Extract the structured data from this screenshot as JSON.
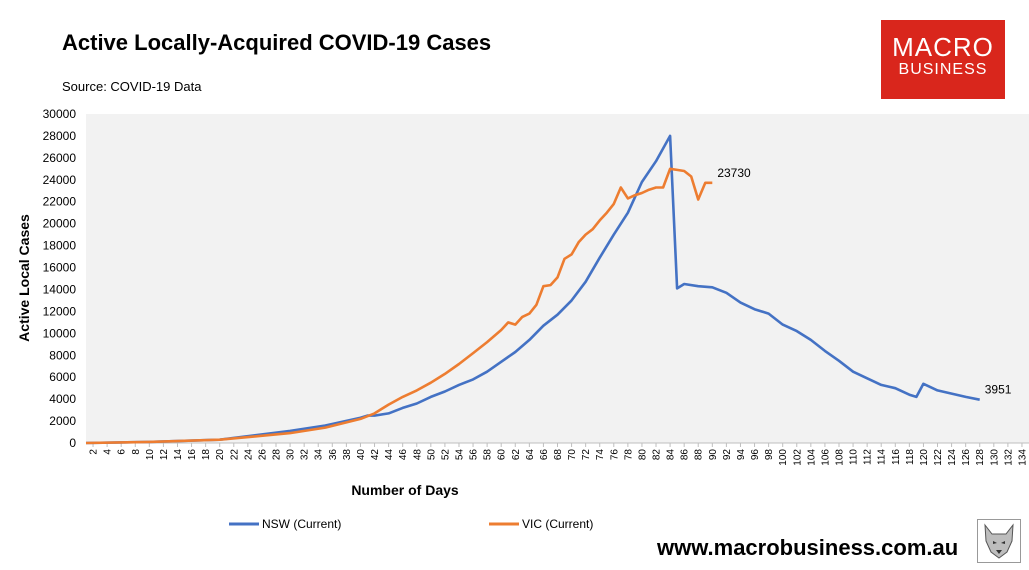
{
  "header": {
    "title": "Active Locally-Acquired COVID-19 Cases",
    "source": "Source: COVID-19 Data"
  },
  "brand": {
    "logo_line1": "MACRO",
    "logo_line2": "BUSINESS",
    "url": "www.macrobusiness.com.au",
    "accent_color": "#d9261c"
  },
  "chart_data": {
    "type": "line",
    "title": "Active Locally-Acquired COVID-19 Cases",
    "xlabel": "Number of Days",
    "ylabel": "Active Local Cases",
    "xlim": [
      1,
      135
    ],
    "ylim": [
      0,
      30000
    ],
    "y_ticks": [
      0,
      2000,
      4000,
      6000,
      8000,
      10000,
      12000,
      14000,
      16000,
      18000,
      20000,
      22000,
      24000,
      26000,
      28000,
      30000
    ],
    "y_tick_labels": [
      "0",
      "2000",
      "4000",
      "6000",
      "8000",
      "10000",
      "12000",
      "14000",
      "16000",
      "18000",
      "20000",
      "22000",
      "24000",
      "26000",
      "28000",
      "30000"
    ],
    "x_ticks": [
      2,
      4,
      6,
      8,
      10,
      12,
      14,
      16,
      18,
      20,
      22,
      24,
      26,
      28,
      30,
      32,
      34,
      36,
      38,
      40,
      42,
      44,
      46,
      48,
      50,
      52,
      54,
      56,
      58,
      60,
      62,
      64,
      66,
      68,
      70,
      72,
      74,
      76,
      78,
      80,
      82,
      84,
      86,
      88,
      90,
      92,
      94,
      96,
      98,
      100,
      102,
      104,
      106,
      108,
      110,
      112,
      114,
      116,
      118,
      120,
      122,
      124,
      126,
      128,
      130,
      132,
      134
    ],
    "x_tick_labels": [
      "2",
      "4",
      "6",
      "8",
      "10",
      "12",
      "14",
      "16",
      "18",
      "20",
      "22",
      "24",
      "26",
      "28",
      "30",
      "32",
      "34",
      "36",
      "38",
      "40",
      "42",
      "44",
      "46",
      "48",
      "50",
      "52",
      "54",
      "56",
      "58",
      "60",
      "62",
      "64",
      "66",
      "68",
      "70",
      "72",
      "74",
      "76",
      "78",
      "80",
      "82",
      "84",
      "86",
      "88",
      "90",
      "92",
      "94",
      "96",
      "98",
      "100",
      "102",
      "104",
      "106",
      "108",
      "110",
      "112",
      "114",
      "116",
      "118",
      "120",
      "122",
      "124",
      "126",
      "128",
      "130",
      "132",
      "134"
    ],
    "grid": false,
    "legend": "bottom",
    "series": [
      {
        "name": "NSW (Current)",
        "color": "#4472c4",
        "x": [
          1,
          10,
          20,
          25,
          30,
          35,
          40,
          41,
          42,
          44,
          46,
          48,
          50,
          52,
          54,
          56,
          58,
          60,
          62,
          64,
          66,
          68,
          70,
          72,
          74,
          76,
          78,
          80,
          82,
          84,
          85,
          86,
          88,
          90,
          92,
          94,
          96,
          98,
          100,
          102,
          104,
          106,
          108,
          110,
          112,
          114,
          116,
          118,
          119,
          120,
          122,
          124,
          126,
          128
        ],
        "values": [
          0,
          100,
          300,
          700,
          1100,
          1600,
          2300,
          2500,
          2500,
          2700,
          3200,
          3600,
          4200,
          4700,
          5300,
          5800,
          6500,
          7400,
          8300,
          9400,
          10700,
          11700,
          13000,
          14700,
          16900,
          19000,
          21000,
          23800,
          25700,
          28000,
          14100,
          14500,
          14300,
          14200,
          13700,
          12800,
          12200,
          11800,
          10800,
          10200,
          9400,
          8400,
          7500,
          6500,
          5900,
          5300,
          5000,
          4400,
          4200,
          5400,
          4800,
          4500,
          4200,
          3951
        ]
      },
      {
        "name": "VIC (Current)",
        "color": "#ed7d31",
        "x": [
          1,
          10,
          20,
          25,
          30,
          35,
          40,
          42,
          44,
          46,
          48,
          50,
          52,
          54,
          56,
          58,
          60,
          61,
          62,
          63,
          64,
          65,
          66,
          67,
          68,
          69,
          70,
          71,
          72,
          73,
          74,
          75,
          76,
          77,
          78,
          79,
          80,
          81,
          82,
          83,
          84,
          85,
          86,
          87,
          88,
          89,
          90
        ],
        "values": [
          0,
          100,
          300,
          600,
          900,
          1400,
          2200,
          2700,
          3500,
          4200,
          4800,
          5500,
          6300,
          7200,
          8200,
          9200,
          10300,
          11000,
          10800,
          11500,
          11800,
          12600,
          14300,
          14400,
          15100,
          16800,
          17200,
          18300,
          19000,
          19500,
          20300,
          21000,
          21800,
          23300,
          22300,
          22600,
          22800,
          23100,
          23300,
          23300,
          25000,
          24900,
          24800,
          24300,
          22200,
          23730,
          23730
        ]
      }
    ],
    "annotations": [
      {
        "text": "23730",
        "series": "VIC (Current)",
        "x": 90,
        "y": 23730
      },
      {
        "text": "3951",
        "series": "NSW (Current)",
        "x": 128,
        "y": 3951
      }
    ]
  }
}
